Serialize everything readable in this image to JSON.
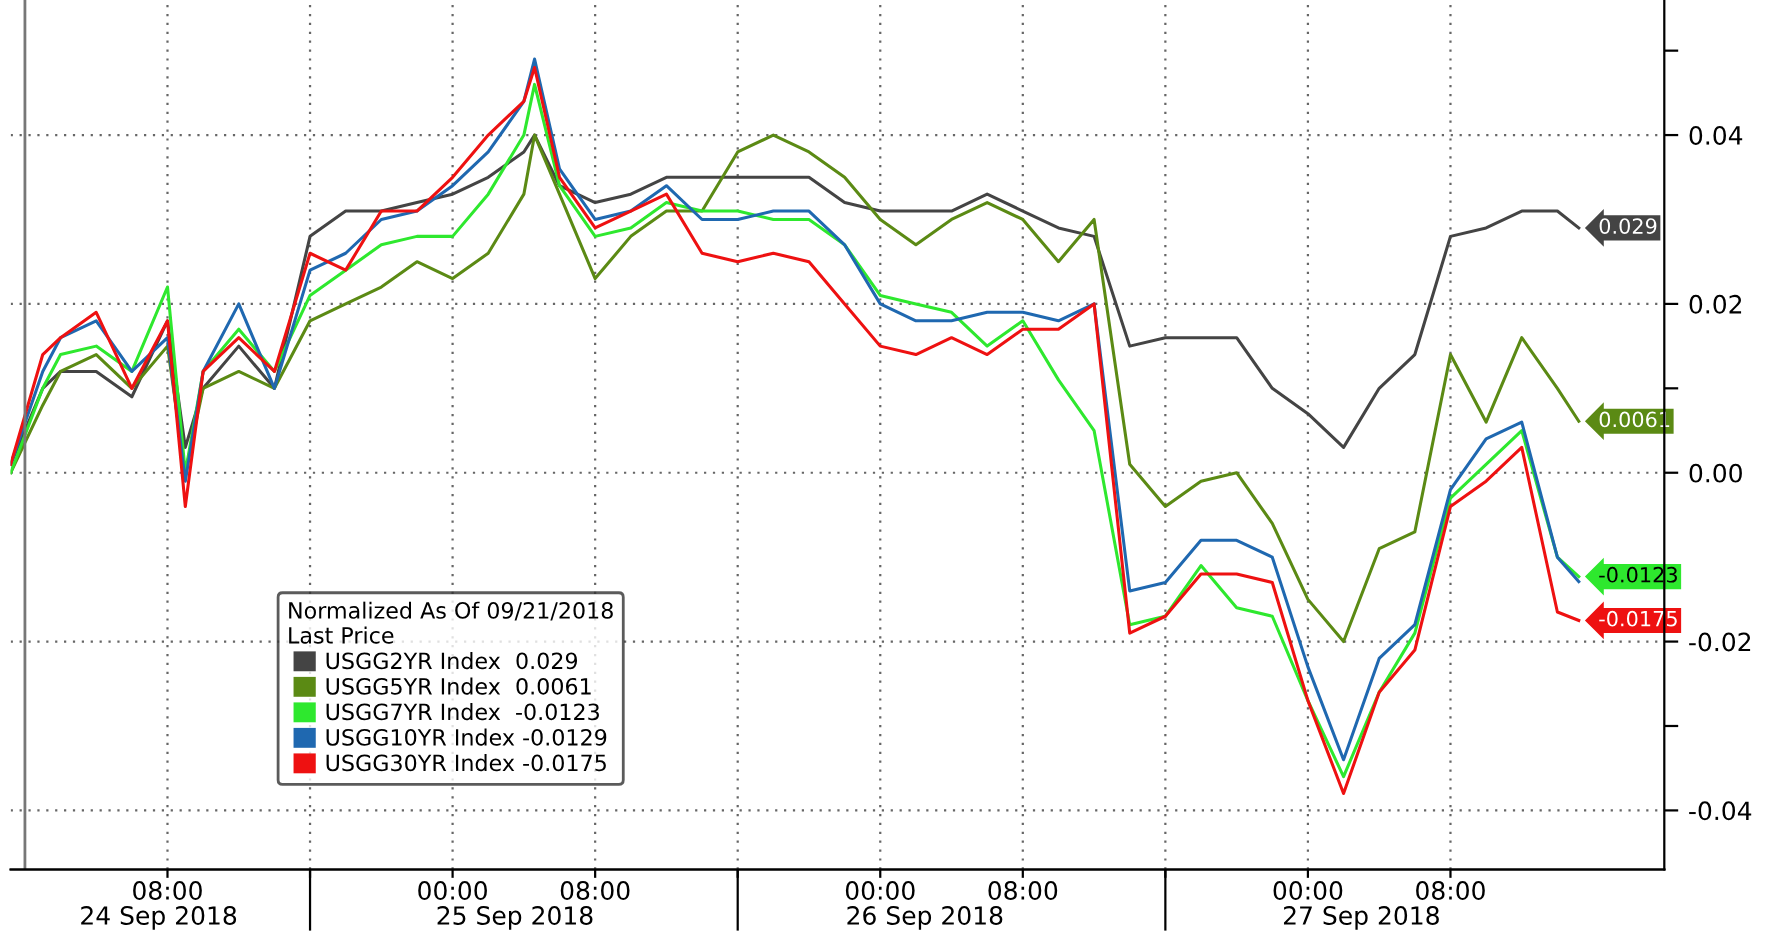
{
  "chart_data": {
    "type": "line",
    "x": [
      "2018-09-23T23:12",
      "2018-09-24T01:00",
      "2018-09-24T02:00",
      "2018-09-24T04:00",
      "2018-09-24T06:00",
      "2018-09-24T08:00",
      "2018-09-24T09:00",
      "2018-09-24T10:00",
      "2018-09-24T12:00",
      "2018-09-24T14:00",
      "2018-09-24T16:00",
      "2018-09-24T18:00",
      "2018-09-24T20:00",
      "2018-09-24T22:00",
      "2018-09-25T00:00",
      "2018-09-25T02:00",
      "2018-09-25T04:00",
      "2018-09-25T04:36",
      "2018-09-25T06:00",
      "2018-09-25T08:00",
      "2018-09-25T10:00",
      "2018-09-25T12:00",
      "2018-09-25T14:00",
      "2018-09-25T16:00",
      "2018-09-25T18:00",
      "2018-09-25T20:00",
      "2018-09-25T22:00",
      "2018-09-26T00:00",
      "2018-09-26T02:00",
      "2018-09-26T04:00",
      "2018-09-26T06:00",
      "2018-09-26T08:00",
      "2018-09-26T10:00",
      "2018-09-26T12:00",
      "2018-09-26T14:00",
      "2018-09-26T16:00",
      "2018-09-26T18:00",
      "2018-09-26T20:00",
      "2018-09-26T22:00",
      "2018-09-27T00:00",
      "2018-09-27T02:00",
      "2018-09-27T04:00",
      "2018-09-27T06:00",
      "2018-09-27T08:00",
      "2018-09-27T10:00",
      "2018-09-27T12:00",
      "2018-09-27T14:00",
      "2018-09-27T15:12"
    ],
    "series": [
      {
        "name": "USGG2YR Index  0.029",
        "color": "#444444",
        "values": [
          0.001,
          0.01,
          0.012,
          0.012,
          0.009,
          0.018,
          0.003,
          0.01,
          0.015,
          0.01,
          0.028,
          0.031,
          0.031,
          0.032,
          0.033,
          0.035,
          0.038,
          0.04,
          0.034,
          0.032,
          0.033,
          0.035,
          0.035,
          0.035,
          0.035,
          0.035,
          0.032,
          0.031,
          0.031,
          0.031,
          0.033,
          0.031,
          0.029,
          0.028,
          0.015,
          0.016,
          0.016,
          0.016,
          0.01,
          0.007,
          0.003,
          0.01,
          0.014,
          0.028,
          0.029,
          0.031,
          0.031,
          0.029
        ],
        "value_labels": [
          null,
          null,
          null,
          null,
          null,
          null,
          null,
          null,
          null,
          null,
          null,
          null,
          null,
          null,
          null,
          null,
          null,
          null,
          null,
          null,
          null,
          null,
          null,
          null,
          null,
          null,
          null,
          null,
          null,
          null,
          null,
          null,
          null,
          null,
          null,
          null,
          null,
          null,
          null,
          null,
          null,
          null,
          null,
          null,
          null,
          null,
          null,
          "0.029"
        ]
      },
      {
        "name": "USGG5YR Index  0.0061",
        "color": "#5b8a14",
        "values": [
          0.0,
          0.008,
          0.012,
          0.014,
          0.01,
          0.015,
          0.0,
          0.01,
          0.012,
          0.01,
          0.018,
          0.02,
          0.022,
          0.025,
          0.023,
          0.026,
          0.033,
          0.04,
          0.033,
          0.023,
          0.028,
          0.031,
          0.031,
          0.038,
          0.04,
          0.038,
          0.035,
          0.03,
          0.027,
          0.03,
          0.032,
          0.03,
          0.025,
          0.03,
          0.001,
          -0.004,
          -0.001,
          0.0,
          -0.006,
          -0.015,
          -0.02,
          -0.009,
          -0.007,
          0.014,
          0.006,
          0.016,
          0.01,
          0.0061
        ],
        "value_labels": [
          null,
          null,
          null,
          null,
          null,
          null,
          null,
          null,
          null,
          null,
          null,
          null,
          null,
          null,
          null,
          null,
          null,
          null,
          null,
          null,
          null,
          null,
          null,
          null,
          null,
          null,
          null,
          null,
          null,
          null,
          null,
          null,
          null,
          null,
          null,
          null,
          null,
          null,
          null,
          null,
          null,
          null,
          null,
          null,
          null,
          null,
          null,
          "0.0061"
        ]
      },
      {
        "name": "USGG7YR Index  -0.0123",
        "color": "#2ee82e",
        "values": [
          0.0,
          0.01,
          0.014,
          0.015,
          0.012,
          0.022,
          0.0,
          0.012,
          0.017,
          0.012,
          0.021,
          0.024,
          0.027,
          0.028,
          0.028,
          0.033,
          0.04,
          0.046,
          0.034,
          0.028,
          0.029,
          0.032,
          0.031,
          0.031,
          0.03,
          0.03,
          0.027,
          0.021,
          0.02,
          0.019,
          0.015,
          0.018,
          0.011,
          0.005,
          -0.018,
          -0.017,
          -0.011,
          -0.016,
          -0.017,
          -0.027,
          -0.036,
          -0.026,
          -0.019,
          -0.003,
          0.001,
          0.005,
          -0.01,
          -0.0123
        ],
        "value_labels": [
          null,
          null,
          null,
          null,
          null,
          null,
          null,
          null,
          null,
          null,
          null,
          null,
          null,
          null,
          null,
          null,
          null,
          null,
          null,
          null,
          null,
          null,
          null,
          null,
          null,
          null,
          null,
          null,
          null,
          null,
          null,
          null,
          null,
          null,
          null,
          null,
          null,
          null,
          null,
          null,
          null,
          null,
          null,
          null,
          null,
          null,
          null,
          "-0.0123"
        ]
      },
      {
        "name": "USGG10YR Index -0.0129",
        "color": "#1f68b0",
        "values": [
          0.001,
          0.012,
          0.016,
          0.018,
          0.012,
          0.016,
          -0.001,
          0.012,
          0.02,
          0.01,
          0.024,
          0.026,
          0.03,
          0.031,
          0.034,
          0.038,
          0.044,
          0.049,
          0.036,
          0.03,
          0.031,
          0.034,
          0.03,
          0.03,
          0.031,
          0.031,
          0.027,
          0.02,
          0.018,
          0.018,
          0.019,
          0.019,
          0.018,
          0.02,
          -0.014,
          -0.013,
          -0.008,
          -0.008,
          -0.01,
          -0.023,
          -0.034,
          -0.022,
          -0.018,
          -0.002,
          0.004,
          0.006,
          -0.01,
          -0.0129
        ]
      },
      {
        "name": "USGG30YR Index -0.0175",
        "color": "#ee1111",
        "values": [
          0.001,
          0.014,
          0.016,
          0.019,
          0.01,
          0.018,
          -0.004,
          0.012,
          0.016,
          0.012,
          0.026,
          0.024,
          0.031,
          0.031,
          0.035,
          0.04,
          0.044,
          0.048,
          0.035,
          0.029,
          0.031,
          0.033,
          0.026,
          0.025,
          0.026,
          0.025,
          0.02,
          0.015,
          0.014,
          0.016,
          0.014,
          0.017,
          0.017,
          0.02,
          -0.019,
          -0.017,
          -0.012,
          -0.012,
          -0.013,
          -0.027,
          -0.038,
          -0.026,
          -0.021,
          -0.004,
          -0.001,
          0.003,
          -0.0165,
          -0.0175
        ],
        "value_labels": [
          null,
          null,
          null,
          null,
          null,
          null,
          null,
          null,
          null,
          null,
          null,
          null,
          null,
          null,
          null,
          null,
          null,
          null,
          null,
          null,
          null,
          null,
          null,
          null,
          null,
          null,
          null,
          null,
          null,
          null,
          null,
          null,
          null,
          null,
          null,
          null,
          null,
          null,
          null,
          null,
          null,
          null,
          null,
          null,
          null,
          null,
          null,
          "-0.0175"
        ]
      }
    ],
    "legend_title": "Normalized As Of 09/21/2018\nLast Price",
    "legend": "bottom left",
    "xlim": [
      "2018-09-23T23:12",
      "2018-09-27T20:00"
    ],
    "xticks": [
      {
        "value": "2018-09-24T08:00",
        "label": "08:00"
      },
      {
        "value": "2018-09-24T16:00",
        "label": null
      },
      {
        "value": "2018-09-25T00:00",
        "label": "00:00"
      },
      {
        "value": "2018-09-25T08:00",
        "label": "08:00"
      },
      {
        "value": "2018-09-25T16:00",
        "label": null
      },
      {
        "value": "2018-09-26T00:00",
        "label": "00:00"
      },
      {
        "value": "2018-09-26T08:00",
        "label": "08:00"
      },
      {
        "value": "2018-09-26T16:00",
        "label": null
      },
      {
        "value": "2018-09-27T00:00",
        "label": "00:00"
      },
      {
        "value": "2018-09-27T08:00",
        "label": "08:00"
      }
    ],
    "x2lim": [
      "2018-09-23T23:12",
      "2018-09-27T20:00"
    ],
    "x2ticks": [
      {
        "value": "2018-09-24T07:30",
        "label": "24 Sep 2018"
      },
      {
        "value": "2018-09-24T16:00",
        "label": null
      },
      {
        "value": "2018-09-25T03:30",
        "label": "25 Sep 2018"
      },
      {
        "value": "2018-09-25T16:00",
        "label": null
      },
      {
        "value": "2018-09-26T02:30",
        "label": "26 Sep 2018"
      },
      {
        "value": "2018-09-26T16:00",
        "label": null
      },
      {
        "value": "2018-09-27T03:00",
        "label": "27 Sep 2018"
      }
    ],
    "ylim": [
      -0.047,
      0.056
    ],
    "yticks": [
      {
        "value": 0.05,
        "label": null
      },
      {
        "value": 0.04,
        "label": "0.04"
      },
      {
        "value": 0.02,
        "label": "0.02"
      },
      {
        "value": 0.01,
        "label": null
      },
      {
        "value": 0.0,
        "label": "0.00"
      },
      {
        "value": -0.02,
        "label": "-0.02"
      },
      {
        "value": -0.03,
        "label": null
      },
      {
        "value": -0.04,
        "label": "-0.04"
      }
    ],
    "ref_lines": [
      {
        "axis": "x",
        "value": "2018-09-24T00:00",
        "color": "#777777",
        "line_style": "solid"
      }
    ],
    "grid": true,
    "line_style": "solid",
    "marker": "none"
  }
}
